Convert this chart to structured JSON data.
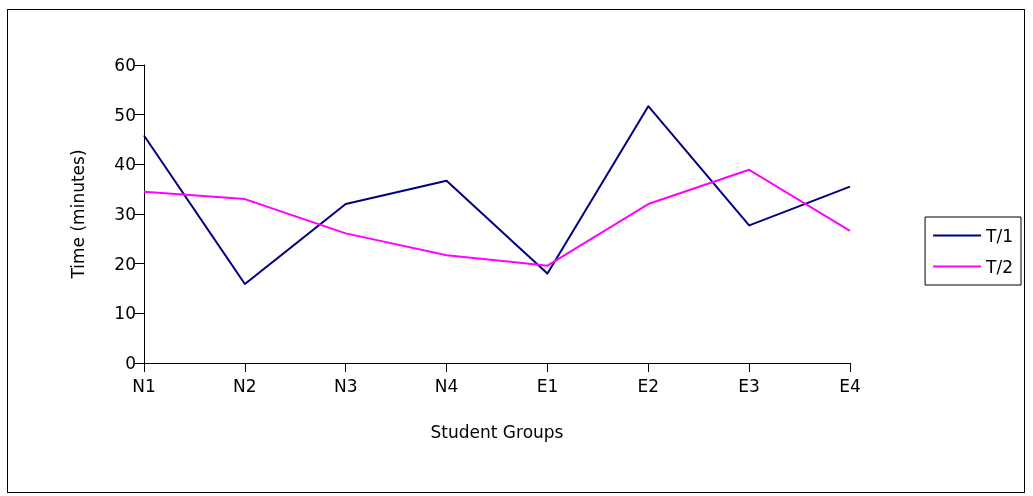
{
  "chart_data": {
    "type": "line",
    "xlabel": "Student Groups",
    "ylabel": "Time (minutes)",
    "categories": [
      "N1",
      "N2",
      "N3",
      "N4",
      "E1",
      "E2",
      "E3",
      "E4"
    ],
    "series": [
      {
        "name": "T/1",
        "color": "#000080",
        "values": [
          45.8,
          15.9,
          32.0,
          36.7,
          18.0,
          51.7,
          27.7,
          35.5
        ]
      },
      {
        "name": "T/2",
        "color": "#ff00ff",
        "values": [
          34.5,
          33.0,
          26.1,
          21.7,
          19.6,
          32.0,
          38.9,
          26.6
        ]
      }
    ],
    "ylim": [
      0,
      60
    ],
    "yticks": [
      0,
      10,
      20,
      30,
      40,
      50,
      60
    ],
    "grid": false,
    "legend": "right",
    "marker": "none",
    "line_style": "solid"
  }
}
